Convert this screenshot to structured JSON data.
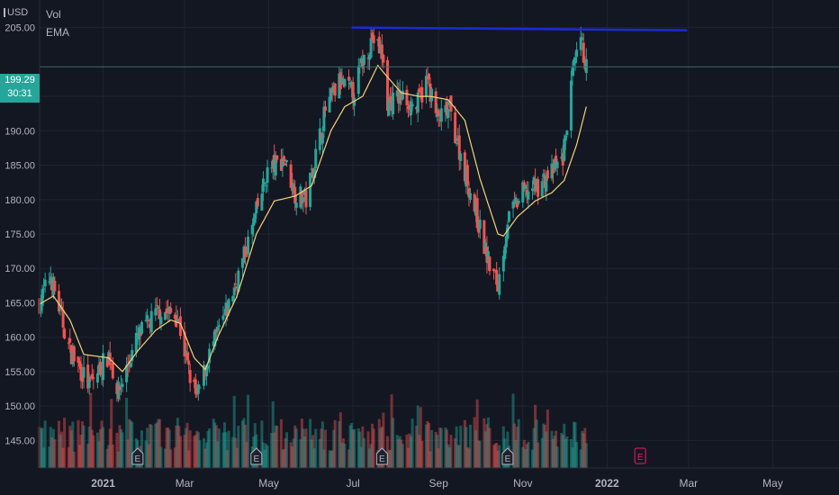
{
  "header": {
    "currency": "USD",
    "legend": [
      "Vol",
      "EMA"
    ]
  },
  "price_tag": {
    "price": "199.29",
    "countdown": "30:31"
  },
  "colors": {
    "background": "#131722",
    "grid": "#1f2433",
    "up": "#26a69a",
    "down": "#ef5350",
    "ema": "#f4d27a",
    "trendline": "#1b2bd6",
    "current_price_line": "#3a6f6b",
    "earnings_badge": "#e91e63"
  },
  "chart_data": {
    "type": "candlestick",
    "title": "",
    "xlabel": "",
    "ylabel": "",
    "ylim": [
      141.0,
      209.0
    ],
    "y_ticks": [
      "205.00",
      "195.00",
      "190.00",
      "185.00",
      "180.00",
      "175.00",
      "170.00",
      "165.00",
      "160.00",
      "155.00",
      "150.00",
      "145.00"
    ],
    "x_ticks": [
      "2021",
      "Mar",
      "May",
      "Jul",
      "Sep",
      "Nov",
      "2022",
      "Mar",
      "May"
    ],
    "x_range": [
      "2020-11-16",
      "2022-06-18"
    ],
    "grid": true,
    "current_price": 199.29,
    "ema_anchors": [
      [
        "2020-11-16",
        164.8
      ],
      [
        "2020-11-26",
        166.0
      ],
      [
        "2020-12-08",
        162.5
      ],
      [
        "2020-12-18",
        157.5
      ],
      [
        "2021-01-05",
        157.0
      ],
      [
        "2021-01-15",
        155.0
      ],
      [
        "2021-01-26",
        158.0
      ],
      [
        "2021-02-08",
        161.0
      ],
      [
        "2021-02-19",
        162.5
      ],
      [
        "2021-02-26",
        162.0
      ],
      [
        "2021-03-08",
        157.0
      ],
      [
        "2021-03-16",
        155.3
      ],
      [
        "2021-03-25",
        160.0
      ],
      [
        "2021-04-08",
        166.0
      ],
      [
        "2021-04-22",
        175.0
      ],
      [
        "2021-05-05",
        179.8
      ],
      [
        "2021-05-20",
        180.5
      ],
      [
        "2021-06-01",
        182.0
      ],
      [
        "2021-06-15",
        190.0
      ],
      [
        "2021-06-25",
        193.5
      ],
      [
        "2021-07-08",
        195.0
      ],
      [
        "2021-07-19",
        199.5
      ],
      [
        "2021-07-23",
        198.5
      ],
      [
        "2021-08-05",
        195.5
      ],
      [
        "2021-08-18",
        195.0
      ],
      [
        "2021-08-26",
        195.0
      ],
      [
        "2021-09-08",
        194.5
      ],
      [
        "2021-09-20",
        191.5
      ],
      [
        "2021-10-01",
        183.0
      ],
      [
        "2021-10-14",
        175.0
      ],
      [
        "2021-10-18",
        174.7
      ],
      [
        "2021-10-28",
        177.5
      ],
      [
        "2021-11-10",
        179.8
      ],
      [
        "2021-11-22",
        181.0
      ],
      [
        "2021-12-01",
        182.8
      ],
      [
        "2021-12-10",
        188.0
      ],
      [
        "2021-12-17",
        193.5
      ]
    ],
    "close_anchors": [
      [
        "2020-11-16",
        165.0
      ],
      [
        "2020-11-24",
        169.0
      ],
      [
        "2020-12-08",
        158.0
      ],
      [
        "2020-12-22",
        153.0
      ],
      [
        "2021-01-05",
        157.5
      ],
      [
        "2021-01-12",
        152.0
      ],
      [
        "2021-01-26",
        160.0
      ],
      [
        "2021-02-11",
        164.0
      ],
      [
        "2021-02-24",
        163.0
      ],
      [
        "2021-03-04",
        155.0
      ],
      [
        "2021-03-10",
        151.0
      ],
      [
        "2021-03-18",
        157.0
      ],
      [
        "2021-04-01",
        164.0
      ],
      [
        "2021-04-15",
        173.0
      ],
      [
        "2021-04-30",
        184.0
      ],
      [
        "2021-05-12",
        186.0
      ],
      [
        "2021-05-20",
        181.0
      ],
      [
        "2021-05-28",
        180.0
      ],
      [
        "2021-06-11",
        193.0
      ],
      [
        "2021-06-21",
        197.0
      ],
      [
        "2021-07-01",
        195.5
      ],
      [
        "2021-07-08",
        200.0
      ],
      [
        "2021-07-15",
        203.5
      ],
      [
        "2021-07-22",
        201.0
      ],
      [
        "2021-07-26",
        194.0
      ],
      [
        "2021-08-05",
        195.0
      ],
      [
        "2021-08-16",
        193.5
      ],
      [
        "2021-08-24",
        197.5
      ],
      [
        "2021-08-31",
        191.5
      ],
      [
        "2021-09-09",
        193.0
      ],
      [
        "2021-09-15",
        188.0
      ],
      [
        "2021-09-28",
        178.0
      ],
      [
        "2021-10-07",
        171.0
      ],
      [
        "2021-10-14",
        167.5
      ],
      [
        "2021-10-21",
        177.0
      ],
      [
        "2021-11-01",
        181.0
      ],
      [
        "2021-11-12",
        182.0
      ],
      [
        "2021-11-22",
        184.0
      ],
      [
        "2021-11-30",
        186.0
      ],
      [
        "2021-12-07",
        198.0
      ],
      [
        "2021-12-13",
        203.0
      ],
      [
        "2021-12-17",
        199.29
      ]
    ],
    "volume_scale": [
      140,
      150
    ],
    "trendline": {
      "from": [
        "2021-06-30",
        205.0
      ],
      "to": [
        "2022-02-28",
        204.6
      ]
    },
    "earnings_markers": [
      {
        "date": "2021-01-26",
        "label": "E"
      },
      {
        "date": "2021-04-22",
        "label": "E"
      },
      {
        "date": "2021-07-22",
        "label": "E"
      },
      {
        "date": "2021-10-21",
        "label": "E"
      },
      {
        "date": "2022-01-25",
        "label": "E",
        "upcoming": true
      }
    ]
  }
}
